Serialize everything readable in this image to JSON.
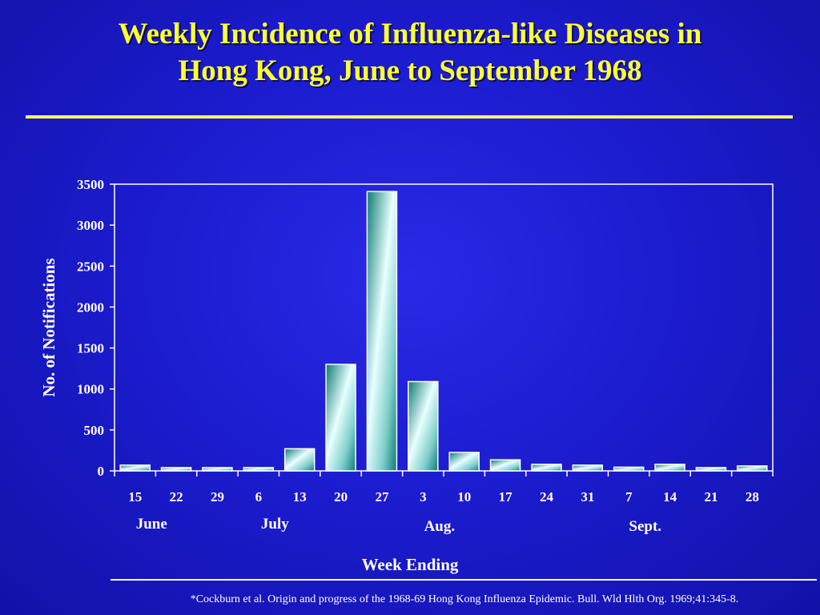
{
  "title_line1": "Weekly Incidence of Influenza-like Diseases in",
  "title_line2": "Hong Kong, June to September 1968",
  "footnote": "*Cockburn et al. Origin and progress of the 1968-69 Hong Kong Influenza Epidemic. Bull. Wld Hlth Org. 1969;41:345-8.",
  "chart_data": {
    "type": "bar",
    "title": "Weekly Incidence of Influenza-like Diseases in Hong Kong, June to September 1968",
    "xlabel": "Week Ending",
    "ylabel": "No. of Notifications",
    "ylim": [
      0,
      3500
    ],
    "yticks": [
      0,
      500,
      1000,
      1500,
      2000,
      2500,
      3000,
      3500
    ],
    "categories": [
      "15",
      "22",
      "29",
      "6",
      "13",
      "20",
      "27",
      "3",
      "10",
      "17",
      "24",
      "31",
      "7",
      "14",
      "21",
      "28"
    ],
    "values": [
      70,
      40,
      40,
      40,
      270,
      1300,
      3410,
      1090,
      225,
      135,
      80,
      70,
      45,
      80,
      40,
      60
    ],
    "months": [
      {
        "label": "June",
        "first_category": 0
      },
      {
        "label": "July",
        "first_category": 3
      },
      {
        "label": "Aug.",
        "first_category": 7
      },
      {
        "label": "Sept.",
        "first_category": 12
      }
    ],
    "grid": false,
    "legend": "none",
    "colors": {
      "bar_dark": "#0e7a72",
      "bar_light": "#e8ffff",
      "axis": "#ffffff",
      "plot_bg": "#1c1cd0"
    }
  }
}
